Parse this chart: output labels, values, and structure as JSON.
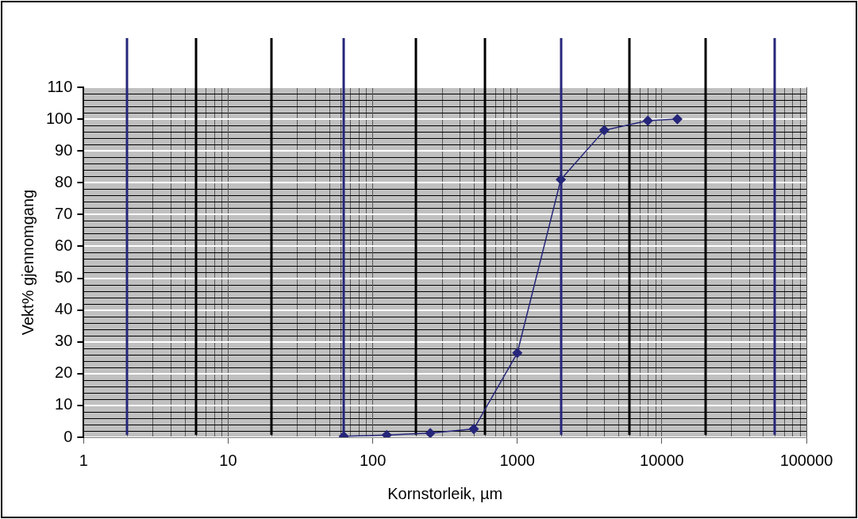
{
  "chart_data": {
    "type": "line",
    "xlabel": "Kornstorleik, µm",
    "ylabel": "Vekt% gjennomgang",
    "x": [
      63,
      125,
      250,
      500,
      1000,
      2000,
      4000,
      8000,
      12800
    ],
    "series": [
      {
        "color": "#26267a",
        "values": [
          0.3,
          0.7,
          1.3,
          2.6,
          26.5,
          81,
          96.5,
          99.5,
          100
        ]
      }
    ],
    "log": "x",
    "xlim": [
      1,
      100000
    ],
    "xticks": [
      1,
      10,
      100,
      1000,
      10000,
      100000
    ],
    "ylim": [
      0,
      110
    ],
    "yticks": [
      0,
      10,
      20,
      30,
      40,
      50,
      60,
      70,
      80,
      90,
      100,
      110
    ],
    "grid": true,
    "legend": false,
    "marker": "diamond",
    "line_style": "solid",
    "ref_lines": [
      {
        "axis": "x",
        "value": 2,
        "color": "#26267a"
      },
      {
        "axis": "x",
        "value": 6,
        "color": "#000000"
      },
      {
        "axis": "x",
        "value": 20,
        "color": "#000000"
      },
      {
        "axis": "x",
        "value": 63,
        "color": "#26267a"
      },
      {
        "axis": "x",
        "value": 200,
        "color": "#000000"
      },
      {
        "axis": "x",
        "value": 600,
        "color": "#000000"
      },
      {
        "axis": "x",
        "value": 2000,
        "color": "#26267a"
      },
      {
        "axis": "x",
        "value": 6000,
        "color": "#000000"
      },
      {
        "axis": "x",
        "value": 20000,
        "color": "#000000"
      },
      {
        "axis": "x",
        "value": 60000,
        "color": "#26267a"
      }
    ]
  }
}
